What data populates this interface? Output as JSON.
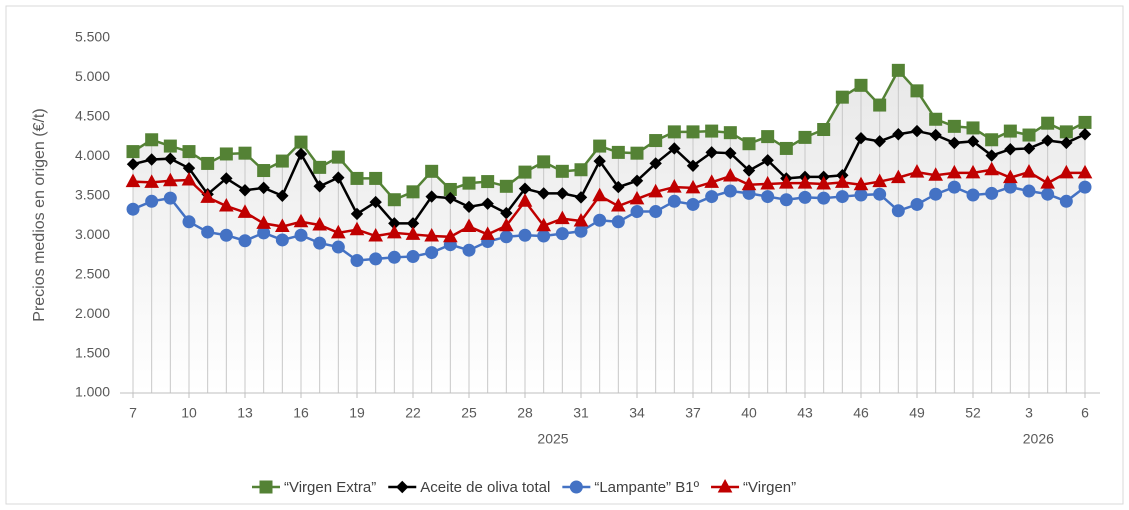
{
  "chart_data": {
    "type": "line",
    "y_label": "Precios medios  en origen (€/t)",
    "categories": [
      "7",
      null,
      null,
      "10",
      null,
      null,
      "13",
      null,
      null,
      "16",
      null,
      null,
      "19",
      null,
      null,
      "22",
      null,
      null,
      "25",
      null,
      null,
      "28",
      null,
      null,
      "31",
      null,
      null,
      "34",
      null,
      null,
      "37",
      null,
      null,
      "40",
      null,
      null,
      "43",
      null,
      null,
      "46",
      null,
      null,
      "49",
      null,
      null,
      "52",
      null,
      null,
      "3",
      null,
      null,
      "6"
    ],
    "x_groups": [
      {
        "label": "2025",
        "count": 46
      },
      {
        "label": "2026",
        "count": 6
      }
    ],
    "ylim": [
      1000,
      5500
    ],
    "yticks": [
      {
        "value": 1000,
        "label": "1.000"
      },
      {
        "value": 1500,
        "label": "1.500"
      },
      {
        "value": 2000,
        "label": "2.000"
      },
      {
        "value": 2500,
        "label": "2.500"
      },
      {
        "value": 3000,
        "label": "3.000"
      },
      {
        "value": 3500,
        "label": "3.500"
      },
      {
        "value": 4000,
        "label": "4.000"
      },
      {
        "value": 4500,
        "label": "4.500"
      },
      {
        "value": 5000,
        "label": "5.000"
      },
      {
        "value": 5500,
        "label": "5.500"
      }
    ],
    "drop_lines": true,
    "legend": "bottom",
    "series": [
      {
        "name": "“Virgen Extra”",
        "color": "#548235",
        "marker": "square",
        "values": [
          4060,
          4210,
          4130,
          4060,
          3910,
          4030,
          4040,
          3820,
          3940,
          4180,
          3860,
          3990,
          3720,
          3720,
          3450,
          3550,
          3810,
          3580,
          3660,
          3680,
          3620,
          3800,
          3930,
          3810,
          3830,
          4130,
          4050,
          4040,
          4200,
          4310,
          4310,
          4320,
          4300,
          4160,
          4250,
          4100,
          4240,
          4340,
          4750,
          4900,
          4650,
          5090,
          4830,
          4470,
          4380,
          4360,
          4210,
          4320,
          4270,
          4420,
          4310,
          4430
        ]
      },
      {
        "name": "Aceite de oliva total",
        "color": "#000000",
        "marker": "diamond",
        "values": [
          3900,
          3960,
          3970,
          3850,
          3520,
          3720,
          3570,
          3600,
          3500,
          4030,
          3620,
          3730,
          3270,
          3420,
          3150,
          3150,
          3490,
          3470,
          3360,
          3400,
          3280,
          3590,
          3530,
          3530,
          3480,
          3940,
          3610,
          3690,
          3910,
          4100,
          3880,
          4050,
          4040,
          3820,
          3950,
          3720,
          3740,
          3740,
          3760,
          4230,
          4190,
          4280,
          4320,
          4270,
          4170,
          4190,
          4010,
          4090,
          4100,
          4200,
          4170,
          4280
        ]
      },
      {
        "name": "“Lampante” B1º",
        "color": "#4472c4",
        "marker": "circle",
        "values": [
          3330,
          3430,
          3470,
          3170,
          3040,
          3000,
          2930,
          3030,
          2940,
          3000,
          2900,
          2850,
          2680,
          2700,
          2720,
          2730,
          2780,
          2880,
          2810,
          2920,
          2980,
          3000,
          2990,
          3020,
          3050,
          3190,
          3170,
          3300,
          3300,
          3430,
          3390,
          3490,
          3560,
          3530,
          3490,
          3450,
          3480,
          3470,
          3490,
          3510,
          3520,
          3310,
          3390,
          3520,
          3610,
          3510,
          3530,
          3610,
          3560,
          3520,
          3430,
          3610
        ]
      },
      {
        "name": "“Virgen”",
        "color": "#c00000",
        "marker": "triangle",
        "values": [
          3680,
          3670,
          3690,
          3700,
          3480,
          3370,
          3290,
          3150,
          3110,
          3170,
          3130,
          3030,
          3070,
          2990,
          3030,
          3010,
          2990,
          2980,
          3110,
          3010,
          3120,
          3430,
          3120,
          3210,
          3180,
          3500,
          3370,
          3460,
          3550,
          3610,
          3600,
          3670,
          3750,
          3640,
          3650,
          3660,
          3660,
          3650,
          3670,
          3640,
          3680,
          3730,
          3800,
          3760,
          3790,
          3790,
          3830,
          3730,
          3800,
          3660,
          3790,
          3790
        ]
      }
    ]
  }
}
